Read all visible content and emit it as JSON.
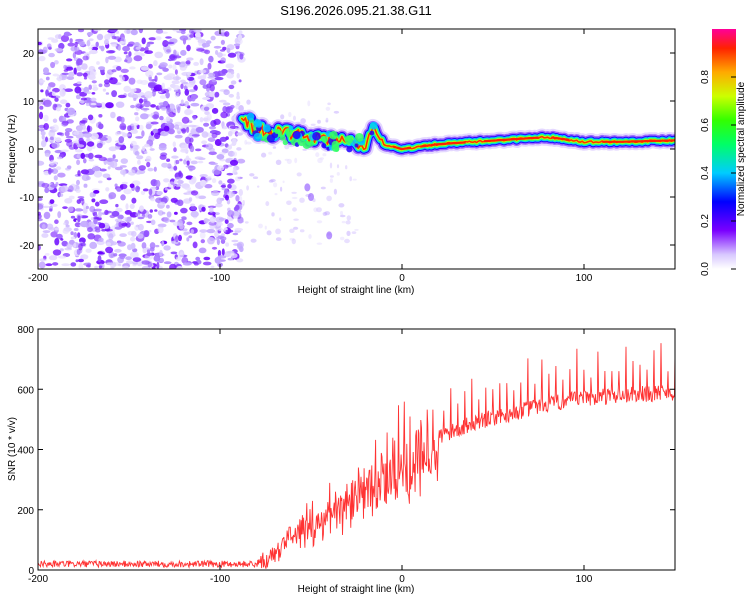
{
  "title": "S196.2026.095.21.38.G11",
  "chart_data": [
    {
      "type": "heatmap",
      "xlabel": "Height of straight line (km)",
      "ylabel": "Frequency (Hz)",
      "xlim": [
        -200,
        150
      ],
      "ylim": [
        -25,
        25
      ],
      "xticks": [
        "-200",
        "-100",
        "0",
        "100"
      ],
      "xtick_values": [
        -200,
        -100,
        0,
        100
      ],
      "yticks": [
        "-20",
        "-10",
        "0",
        "10",
        "20"
      ],
      "ytick_values": [
        -20,
        -10,
        0,
        10,
        20
      ],
      "ridge": {
        "x": [
          -88,
          -80,
          -70,
          -60,
          -50,
          -40,
          -30,
          -20,
          -15,
          -10,
          0,
          20,
          40,
          60,
          80,
          90,
          100,
          120,
          150
        ],
        "y": [
          7,
          4,
          3.5,
          3,
          2.5,
          2,
          1.5,
          1,
          4,
          1,
          0,
          1,
          1.5,
          2,
          2.5,
          2,
          1.5,
          1.5,
          1.8
        ]
      },
      "colorbar": {
        "label": "Normalized spectral amplitude",
        "range": [
          0,
          1
        ],
        "ticks": [
          "0.0",
          "0.2",
          "0.4",
          "0.6",
          "0.8"
        ],
        "tick_values": [
          0,
          0.2,
          0.4,
          0.6,
          0.8
        ]
      }
    },
    {
      "type": "line",
      "xlabel": "Height of straight line (km)",
      "ylabel": "SNR (10 * v/v)",
      "xlim": [
        -200,
        150
      ],
      "ylim": [
        0,
        800
      ],
      "xticks": [
        "-200",
        "-100",
        "0",
        "100"
      ],
      "xtick_values": [
        -200,
        -100,
        0,
        100
      ],
      "yticks": [
        "0",
        "200",
        "400",
        "600",
        "800"
      ],
      "ytick_values": [
        0,
        200,
        400,
        600,
        800
      ],
      "color": "#ff3333",
      "envelope": {
        "x": [
          -200,
          -80,
          -70,
          -60,
          -40,
          -20,
          0,
          20,
          40,
          60,
          80,
          100,
          120,
          150
        ],
        "y": [
          20,
          20,
          60,
          120,
          180,
          260,
          360,
          440,
          490,
          520,
          550,
          570,
          580,
          590
        ]
      }
    }
  ]
}
